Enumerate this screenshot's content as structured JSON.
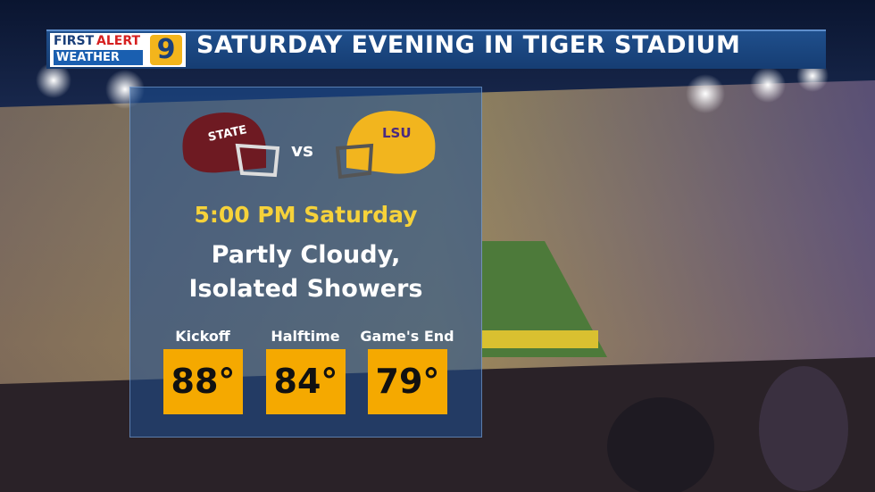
{
  "header": {
    "logo": {
      "first": "FIRST",
      "alert": "ALERT",
      "weather": "WEATHER",
      "channel": "9"
    },
    "title": "SATURDAY EVENING IN TIGER STADIUM"
  },
  "matchup": {
    "away_helmet": "STATE",
    "versus": "vs",
    "home_helmet": "LSU"
  },
  "forecast": {
    "time": "5:00 PM Saturday",
    "conditions": [
      "Partly Cloudy,",
      "Isolated Showers"
    ]
  },
  "temperatures": [
    {
      "label": "Kickoff",
      "value": "88°"
    },
    {
      "label": "Halftime",
      "value": "84°"
    },
    {
      "label": "Game's End",
      "value": "79°"
    }
  ]
}
